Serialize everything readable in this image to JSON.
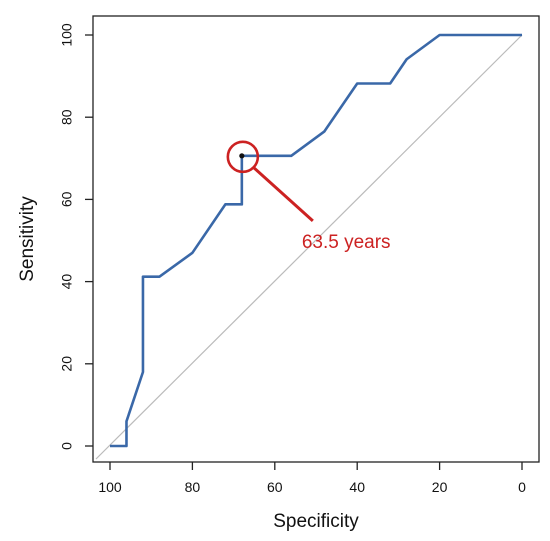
{
  "chart_data": {
    "type": "line",
    "xlabel": "Specificity",
    "ylabel": "Sensitivity",
    "x_reversed": true,
    "xlim": [
      100,
      0
    ],
    "ylim": [
      0,
      100
    ],
    "x_ticks": [
      "100",
      "80",
      "60",
      "40",
      "20",
      "0"
    ],
    "x_tick_values": [
      100,
      80,
      60,
      40,
      20,
      0
    ],
    "y_ticks": [
      "0",
      "20",
      "40",
      "60",
      "80",
      "100"
    ],
    "y_tick_values": [
      0,
      20,
      40,
      60,
      80,
      100
    ],
    "grid": false,
    "series": [
      {
        "color": "#3a68a8",
        "points": [
          [
            100,
            0
          ],
          [
            96,
            0
          ],
          [
            96,
            6
          ],
          [
            92,
            18
          ],
          [
            92,
            41.2
          ],
          [
            88,
            41.2
          ],
          [
            80,
            47
          ],
          [
            72,
            58.8
          ],
          [
            68,
            58.8
          ],
          [
            68,
            70.6
          ],
          [
            56,
            70.6
          ],
          [
            48,
            76.5
          ],
          [
            40,
            88.2
          ],
          [
            32,
            88.2
          ],
          [
            28,
            94.1
          ],
          [
            20,
            100
          ],
          [
            0,
            100
          ]
        ]
      }
    ],
    "reference_line": {
      "from": [
        100,
        0
      ],
      "to": [
        0,
        100
      ],
      "color": "#bbbbbb"
    },
    "annotation": {
      "text": "63.5 years",
      "point": [
        68,
        70.6
      ],
      "color": "#cc2222"
    }
  }
}
